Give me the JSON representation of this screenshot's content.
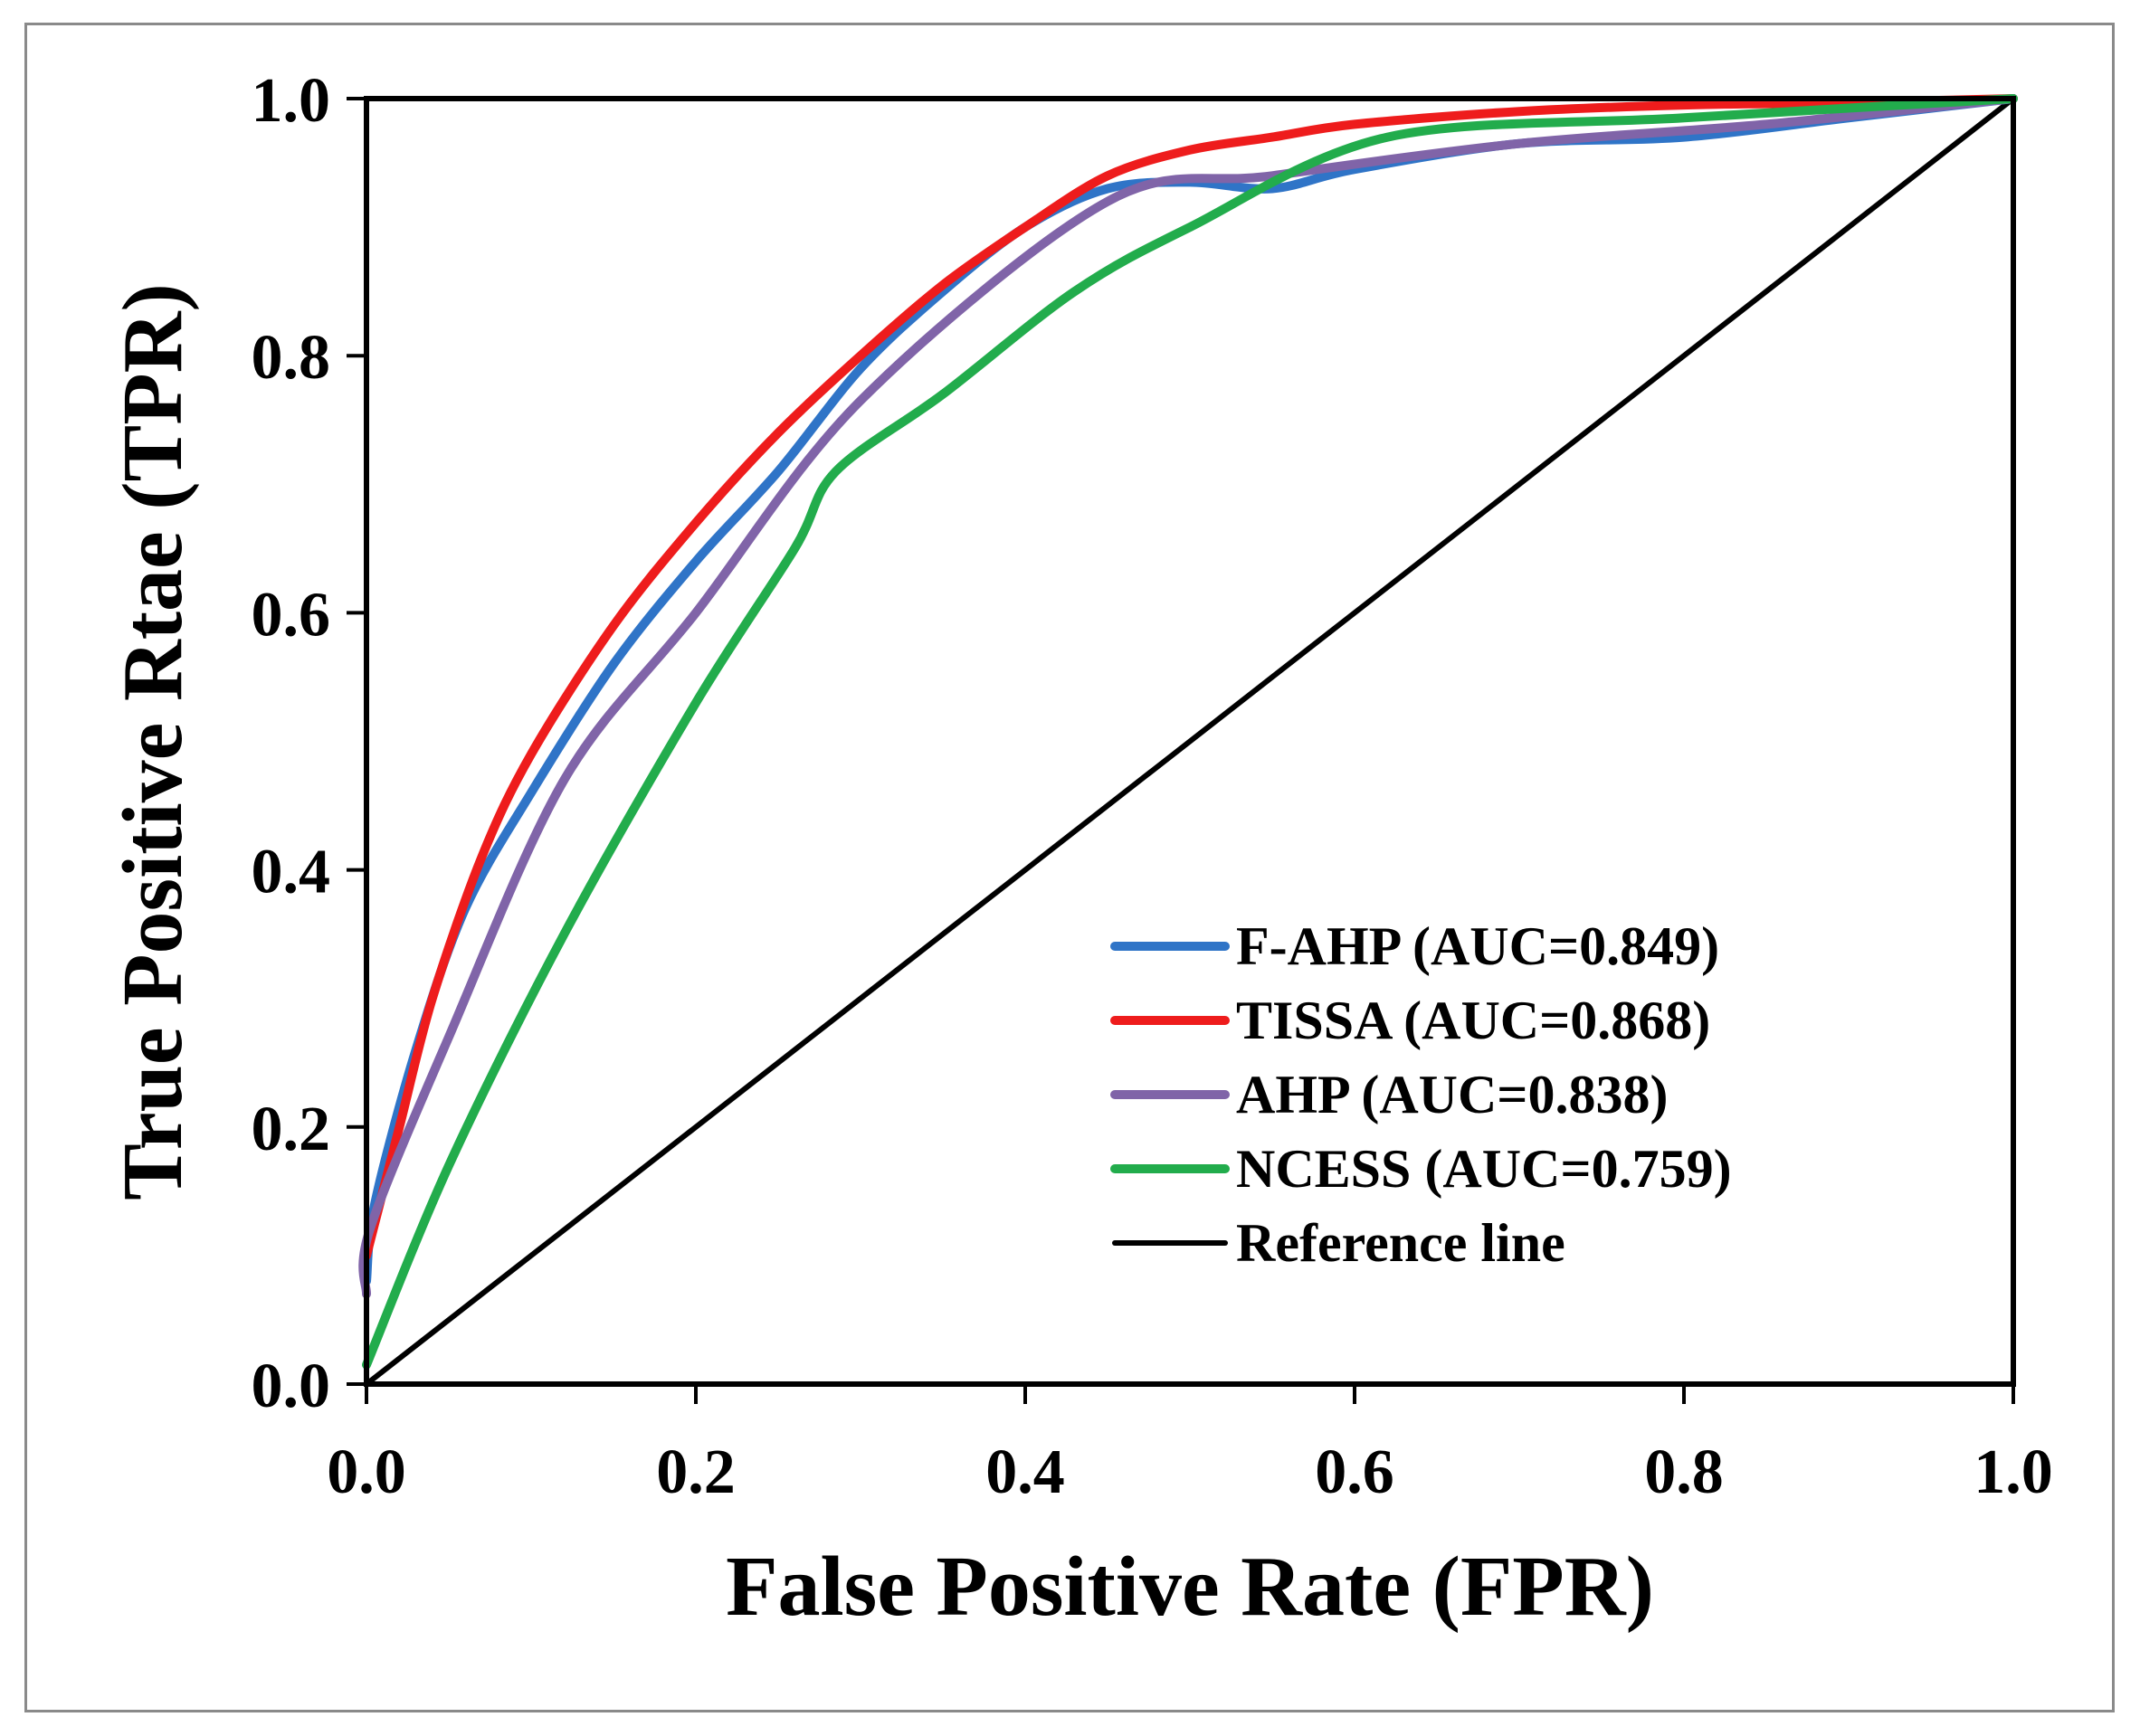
{
  "chart_data": {
    "type": "line",
    "title": "",
    "xlabel": "False Positive Rate (FPR)",
    "ylabel": "True Positive Rtae (TPR)",
    "xlim": [
      0,
      1
    ],
    "ylim": [
      0,
      1
    ],
    "xticks": [
      "0.0",
      "0.2",
      "0.4",
      "0.6",
      "0.8",
      "1.0"
    ],
    "yticks": [
      "0.0",
      "0.2",
      "0.4",
      "0.6",
      "0.8",
      "1.0"
    ],
    "grid": false,
    "legend_position": "bottom-right",
    "series": [
      {
        "name": "F-AHP (AUC=0.849)",
        "color": "#2f74c7",
        "x": [
          0,
          0.005,
          0.03,
          0.06,
          0.1,
          0.15,
          0.2,
          0.25,
          0.3,
          0.35,
          0.4,
          0.45,
          0.5,
          0.55,
          0.6,
          0.7,
          0.8,
          0.9,
          1.0
        ],
        "y": [
          0.08,
          0.14,
          0.26,
          0.37,
          0.46,
          0.56,
          0.64,
          0.71,
          0.79,
          0.85,
          0.9,
          0.93,
          0.935,
          0.93,
          0.945,
          0.965,
          0.97,
          0.985,
          1.0
        ]
      },
      {
        "name": "TISSA (AUC=0.868)",
        "color": "#ee1c1c",
        "x": [
          0,
          0.02,
          0.04,
          0.07,
          0.1,
          0.15,
          0.2,
          0.25,
          0.3,
          0.35,
          0.4,
          0.45,
          0.5,
          0.55,
          0.6,
          0.7,
          0.8,
          0.9,
          1.0
        ],
        "y": [
          0.1,
          0.2,
          0.3,
          0.41,
          0.49,
          0.59,
          0.67,
          0.74,
          0.8,
          0.855,
          0.9,
          0.94,
          0.96,
          0.97,
          0.98,
          0.99,
          0.995,
          0.997,
          1.0
        ]
      },
      {
        "name": "AHP (AUC=0.838)",
        "color": "#8064a8",
        "x": [
          0,
          0.002,
          0.05,
          0.12,
          0.2,
          0.3,
          0.45,
          0.55,
          0.7,
          0.85,
          1.0
        ],
        "y": [
          0.07,
          0.12,
          0.27,
          0.47,
          0.6,
          0.765,
          0.92,
          0.94,
          0.965,
          0.98,
          1.0
        ]
      },
      {
        "name": "NCESS (AUC=0.759)",
        "color": "#22ac4c",
        "x": [
          0,
          0.05,
          0.12,
          0.2,
          0.26,
          0.285,
          0.35,
          0.43,
          0.5,
          0.62,
          0.8,
          1.0
        ],
        "y": [
          0.015,
          0.17,
          0.35,
          0.53,
          0.65,
          0.71,
          0.77,
          0.85,
          0.9,
          0.97,
          0.985,
          1.0
        ]
      },
      {
        "name": "Reference line",
        "color": "#000000",
        "x": [
          0,
          1
        ],
        "y": [
          0,
          1
        ]
      }
    ]
  }
}
